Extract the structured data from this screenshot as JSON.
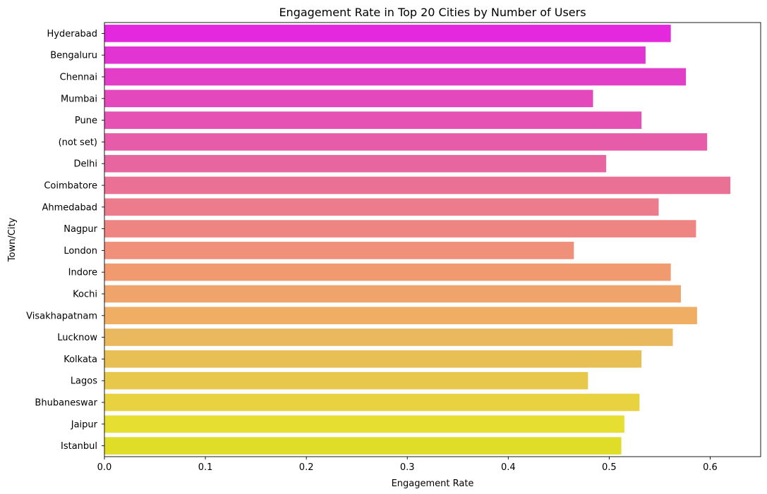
{
  "chart_data": {
    "type": "bar",
    "orientation": "horizontal",
    "title": "Engagement Rate in Top 20 Cities by Number of Users",
    "xlabel": "Engagement Rate",
    "ylabel": "Town/City",
    "xlim": [
      0,
      0.65
    ],
    "xticks": [
      0.0,
      0.1,
      0.2,
      0.3,
      0.4,
      0.5,
      0.6
    ],
    "xtick_labels": [
      "0.0",
      "0.1",
      "0.2",
      "0.3",
      "0.4",
      "0.5",
      "0.6"
    ],
    "grid": false,
    "legend": false,
    "palette": "spring",
    "categories": [
      "Hyderabad",
      "Bengaluru",
      "Chennai",
      "Mumbai",
      "Pune",
      "(not set)",
      "Delhi",
      "Coimbatore",
      "Ahmedabad",
      "Nagpur",
      "London",
      "Indore",
      "Kochi",
      "Visakhapatnam",
      "Lucknow",
      "Kolkata",
      "Lagos",
      "Bhubaneswar",
      "Jaipur",
      "Istanbul"
    ],
    "values": [
      0.561,
      0.536,
      0.576,
      0.484,
      0.532,
      0.597,
      0.497,
      0.62,
      0.549,
      0.586,
      0.465,
      0.561,
      0.571,
      0.587,
      0.563,
      0.532,
      0.479,
      0.53,
      0.515,
      0.512
    ],
    "colors": [
      "#e328de",
      "#e234d3",
      "#e33ec8",
      "#e448bd",
      "#e552b3",
      "#e75ca9",
      "#e8669f",
      "#ea7096",
      "#ec7b8c",
      "#ee8583",
      "#f08f7a",
      "#f19a70",
      "#efa46c",
      "#f0ae64",
      "#eab85e",
      "#e8bf54",
      "#e8c84b",
      "#e8d240",
      "#e7de32",
      "#e0dd28"
    ]
  }
}
